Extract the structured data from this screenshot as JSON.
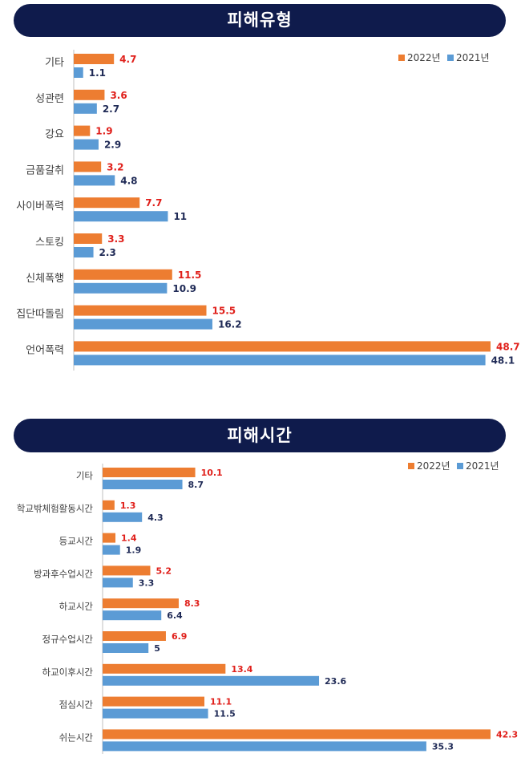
{
  "colors": {
    "bar_2022": "#ed7d31",
    "bar_2021": "#5b9bd5",
    "label_2022": "#e0201b",
    "label_2021": "#1f2a56",
    "banner": "#0f1b4c"
  },
  "panels": [
    {
      "title": "피해유형"
    },
    {
      "title": "피해시간"
    }
  ],
  "chart_data": [
    {
      "type": "bar",
      "orientation": "horizontal",
      "title": "피해유형",
      "categories": [
        "기타",
        "성관련",
        "강요",
        "금품갈취",
        "사이버폭력",
        "스토킹",
        "신체폭행",
        "집단따돌림",
        "언어폭력"
      ],
      "series": [
        {
          "name": "2022년",
          "values": [
            4.7,
            3.6,
            1.9,
            3.2,
            7.7,
            3.3,
            11.5,
            15.5,
            48.7
          ],
          "labels": [
            "4.7",
            "3.6",
            "1.9",
            "3.2",
            "7.7",
            "3.3",
            "11.5",
            "15.5",
            "48.7"
          ]
        },
        {
          "name": "2021년",
          "values": [
            1.1,
            2.7,
            2.9,
            4.8,
            11,
            2.3,
            10.9,
            16.2,
            48.1
          ],
          "labels": [
            "1.1",
            "2.7",
            "2.9",
            "4.8",
            "11",
            "2.3",
            "10.9",
            "16.2",
            "48.1"
          ]
        }
      ],
      "legend": "top-right",
      "grid": false
    },
    {
      "type": "bar",
      "orientation": "horizontal",
      "title": "피해시간",
      "categories": [
        "기타",
        "학교밖체험활동시간",
        "등교시간",
        "방과후수업시간",
        "하교시간",
        "정규수업시간",
        "하교이후시간",
        "점심시간",
        "쉬는시간"
      ],
      "series": [
        {
          "name": "2022년",
          "values": [
            10.1,
            1.3,
            1.4,
            5.2,
            8.3,
            6.9,
            13.4,
            11.1,
            42.3
          ],
          "labels": [
            "10.1",
            "1.3",
            "1.4",
            "5.2",
            "8.3",
            "6.9",
            "13.4",
            "11.1",
            "42.3"
          ]
        },
        {
          "name": "2021년",
          "values": [
            8.7,
            4.3,
            1.9,
            3.3,
            6.4,
            5,
            23.6,
            11.5,
            35.3
          ],
          "labels": [
            "8.7",
            "4.3",
            "1.9",
            "3.3",
            "6.4",
            "5",
            "23.6",
            "11.5",
            "35.3"
          ]
        }
      ],
      "legend": "top-right",
      "grid": false
    }
  ]
}
